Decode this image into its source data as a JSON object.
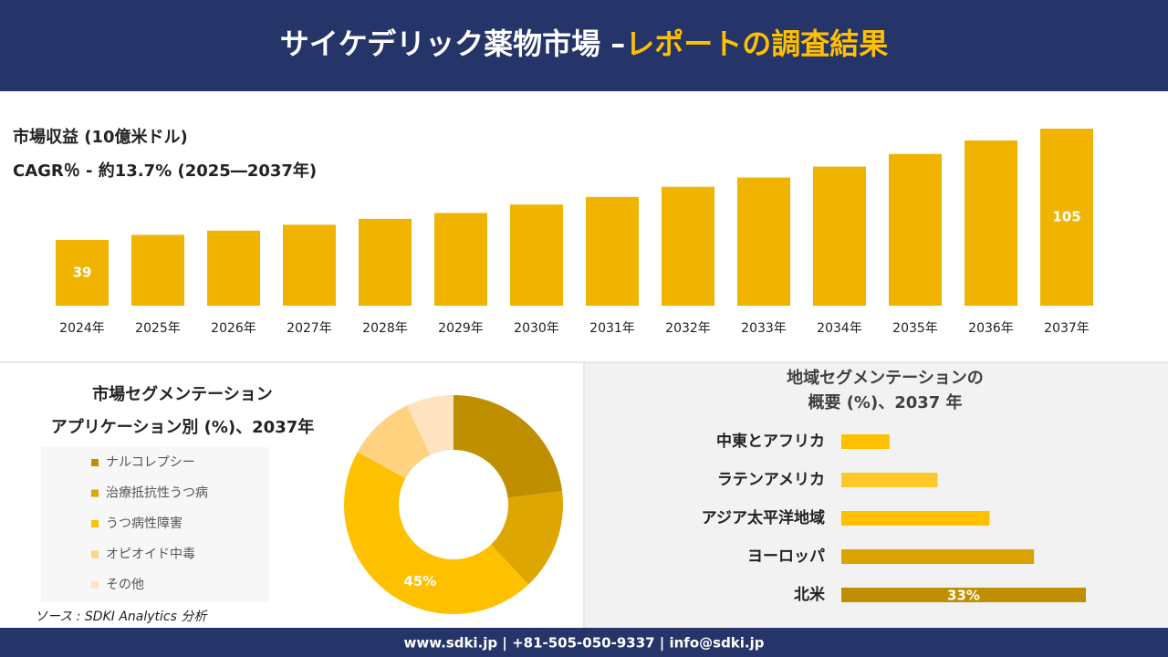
{
  "header": {
    "title": "サイケデリック薬物市場 –",
    "highlight": "レポートの調査結果"
  },
  "chart_data": [
    {
      "type": "bar",
      "title": "市場収益 (10億米ドル)",
      "subtitle": "CAGR％ - 約13.7% (2025―2037年)",
      "categories": [
        "2024年",
        "2025年",
        "2026年",
        "2027年",
        "2028年",
        "2029年",
        "2030年",
        "2031年",
        "2032年",
        "2033年",
        "2034年",
        "2035年",
        "2036年",
        "2037年"
      ],
      "values": [
        39,
        42,
        44.5,
        48,
        51.5,
        55,
        60,
        64.5,
        70.5,
        76,
        82.5,
        90,
        98,
        105
      ],
      "value_labels": [
        "39",
        null,
        null,
        null,
        null,
        null,
        null,
        null,
        null,
        null,
        null,
        null,
        null,
        "105"
      ],
      "color": "#f0b400"
    },
    {
      "type": "doughnut",
      "title": "市場セグメンテーション",
      "subtitle": "アプリケーション別 (%)、2037年",
      "categories": [
        "ナルコレプシー",
        "治療抵抗性うつ病",
        "うつ病性障害",
        "オピオイド中毒",
        "その他"
      ],
      "values": [
        23,
        15,
        45,
        10,
        7
      ],
      "value_labels": [
        null,
        null,
        "45%",
        null,
        null
      ],
      "colors": [
        "#bf8f00",
        "#dea600",
        "#ffc000",
        "#ffd280",
        "#ffe2bf"
      ]
    },
    {
      "type": "barh",
      "title": "地域セグメンテーションの",
      "subtitle": "概要 (%)、2037 年",
      "categories": [
        "中東とアフリカ",
        "ラテンアメリカ",
        "アジア太平洋地域",
        "ヨーロッパ",
        "北米"
      ],
      "values": [
        6.5,
        13,
        20,
        26,
        33
      ],
      "value_labels": [
        null,
        null,
        null,
        null,
        "33%"
      ],
      "colors": [
        "#ffc000",
        "#ffc72c",
        "#ffc000",
        "#d9a400",
        "#bf8f00"
      ]
    }
  ],
  "source": "ソース : SDKI Analytics 分析",
  "footer": "www.sdki.jp | +81-505-050-9337 | info@sdki.jp"
}
